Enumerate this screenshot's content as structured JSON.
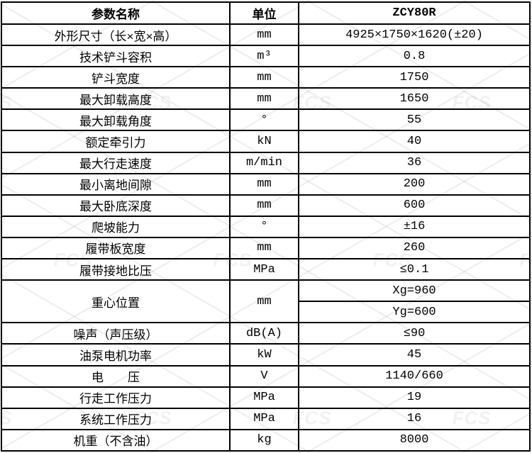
{
  "page": {
    "background": "#ffffff",
    "border_color": "#000000",
    "text_color": "#000000"
  },
  "watermark": {
    "text": "FCS"
  },
  "table": {
    "headers": {
      "param": "参数名称",
      "unit": "单位",
      "model": "ZCY80R"
    },
    "rows": [
      {
        "name": "外形尺寸（长×宽×高）",
        "unit": "mm",
        "value": "4925×1750×1620(±20)"
      },
      {
        "name": "技术铲斗容积",
        "unit": "m³",
        "value": "0.8"
      },
      {
        "name": "铲斗宽度",
        "unit": "mm",
        "value": "1750"
      },
      {
        "name": "最大卸载高度",
        "unit": "mm",
        "value": "1650"
      },
      {
        "name": "最大卸载角度",
        "unit": "°",
        "value": "55"
      },
      {
        "name": "额定牵引力",
        "unit": "kN",
        "value": "40"
      },
      {
        "name": "最大行走速度",
        "unit": "m/min",
        "value": "36"
      },
      {
        "name": "最小离地间隙",
        "unit": "mm",
        "value": "200"
      },
      {
        "name": "最大卧底深度",
        "unit": "mm",
        "value": "600"
      },
      {
        "name": "爬坡能力",
        "unit": "°",
        "value": "±16"
      },
      {
        "name": "履带板宽度",
        "unit": "mm",
        "value": "260"
      },
      {
        "name": "履带接地比压",
        "unit": "MPa",
        "value": "≤0.1"
      },
      {
        "name": "重心位置",
        "unit": "mm",
        "values": [
          "Xg=960",
          "Yg=600"
        ]
      },
      {
        "name": "噪声（声压级）",
        "unit": "dB(A)",
        "value": "≤90"
      },
      {
        "name": "油泵电机功率",
        "unit": "kW",
        "value": "45"
      },
      {
        "name": "电　　压",
        "unit": "V",
        "value": "1140/660"
      },
      {
        "name": "行走工作压力",
        "unit": "MPa",
        "value": "19"
      },
      {
        "name": "系统工作压力",
        "unit": "MPa",
        "value": "16"
      },
      {
        "name": "机重（不含油）",
        "unit": "kg",
        "value": "8000"
      }
    ]
  }
}
